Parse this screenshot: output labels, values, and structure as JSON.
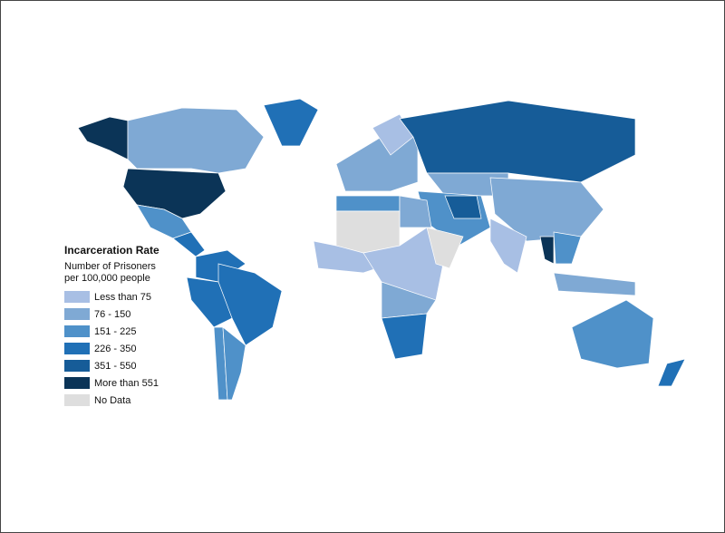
{
  "legend": {
    "title": "Incarceration Rate",
    "subtitle": [
      "Number of Prisoners",
      "per 100,000 people"
    ],
    "items": [
      {
        "label": "Less than 75",
        "color": "#a8bfe4"
      },
      {
        "label": "76 - 150",
        "color": "#7fa9d4"
      },
      {
        "label": "151 - 225",
        "color": "#4f91c9"
      },
      {
        "label": "226 - 350",
        "color": "#2070b6"
      },
      {
        "label": "351 - 550",
        "color": "#165c98"
      },
      {
        "label": "More than 551",
        "color": "#0b3457"
      },
      {
        "label": "No Data",
        "color": "#dedede"
      }
    ]
  }
}
